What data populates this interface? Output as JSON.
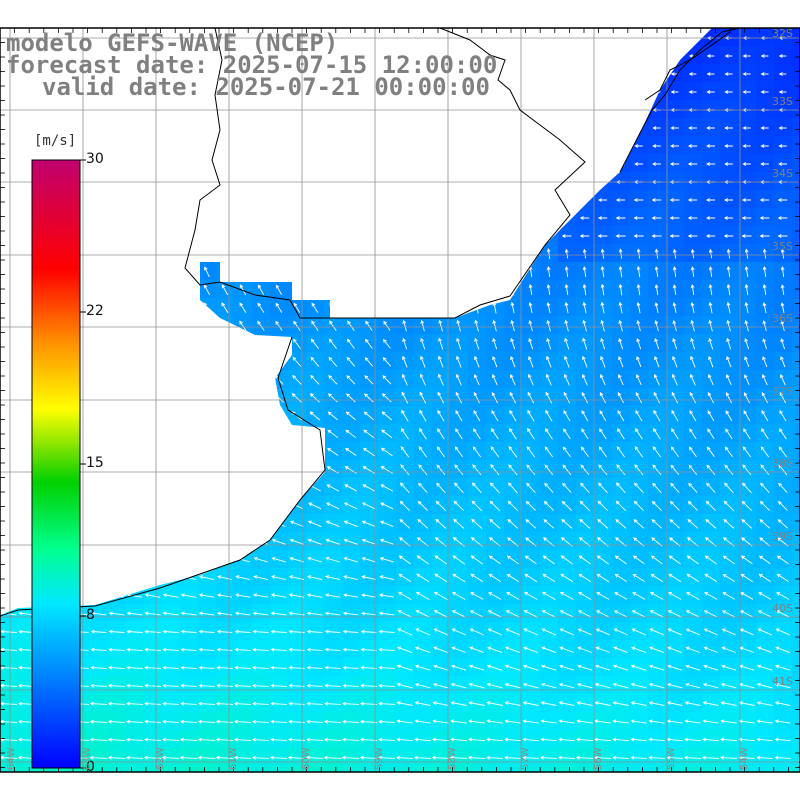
{
  "title": {
    "line1": "modelo GEFS-WAVE (NCEP)",
    "line2": "forecast date: 2025-07-15 12:00:00",
    "line3": "valid date: 2025-07-21 00:00:00"
  },
  "colorbar": {
    "unit": "[m/s]",
    "ticks": [
      {
        "label": "30",
        "value": 30
      },
      {
        "label": "22",
        "value": 22
      },
      {
        "label": "15",
        "value": 15
      },
      {
        "label": "8",
        "value": 8
      },
      {
        "label": "0",
        "value": 0
      }
    ],
    "colors": [
      "#0000ff",
      "#0070ff",
      "#00e0ff",
      "#00ff90",
      "#00d000",
      "#ffff00",
      "#ff8000",
      "#ff0000",
      "#c00070"
    ]
  },
  "lat_labels": [
    "32S",
    "33S",
    "34S",
    "35S",
    "36S",
    "37S",
    "38S",
    "39S",
    "40S",
    "41S"
  ],
  "lon_labels": [
    "64W",
    "63W",
    "62W",
    "61W",
    "60W",
    "59W",
    "58W",
    "57W",
    "56W",
    "55W",
    "54W"
  ],
  "grid": {
    "lon_range": [
      -65,
      -54
    ],
    "lat_range": [
      -41.5,
      -31.5
    ],
    "shown": true
  },
  "field": {
    "variable": "wind speed and direction",
    "typical_speed_range": [
      3,
      9
    ]
  }
}
